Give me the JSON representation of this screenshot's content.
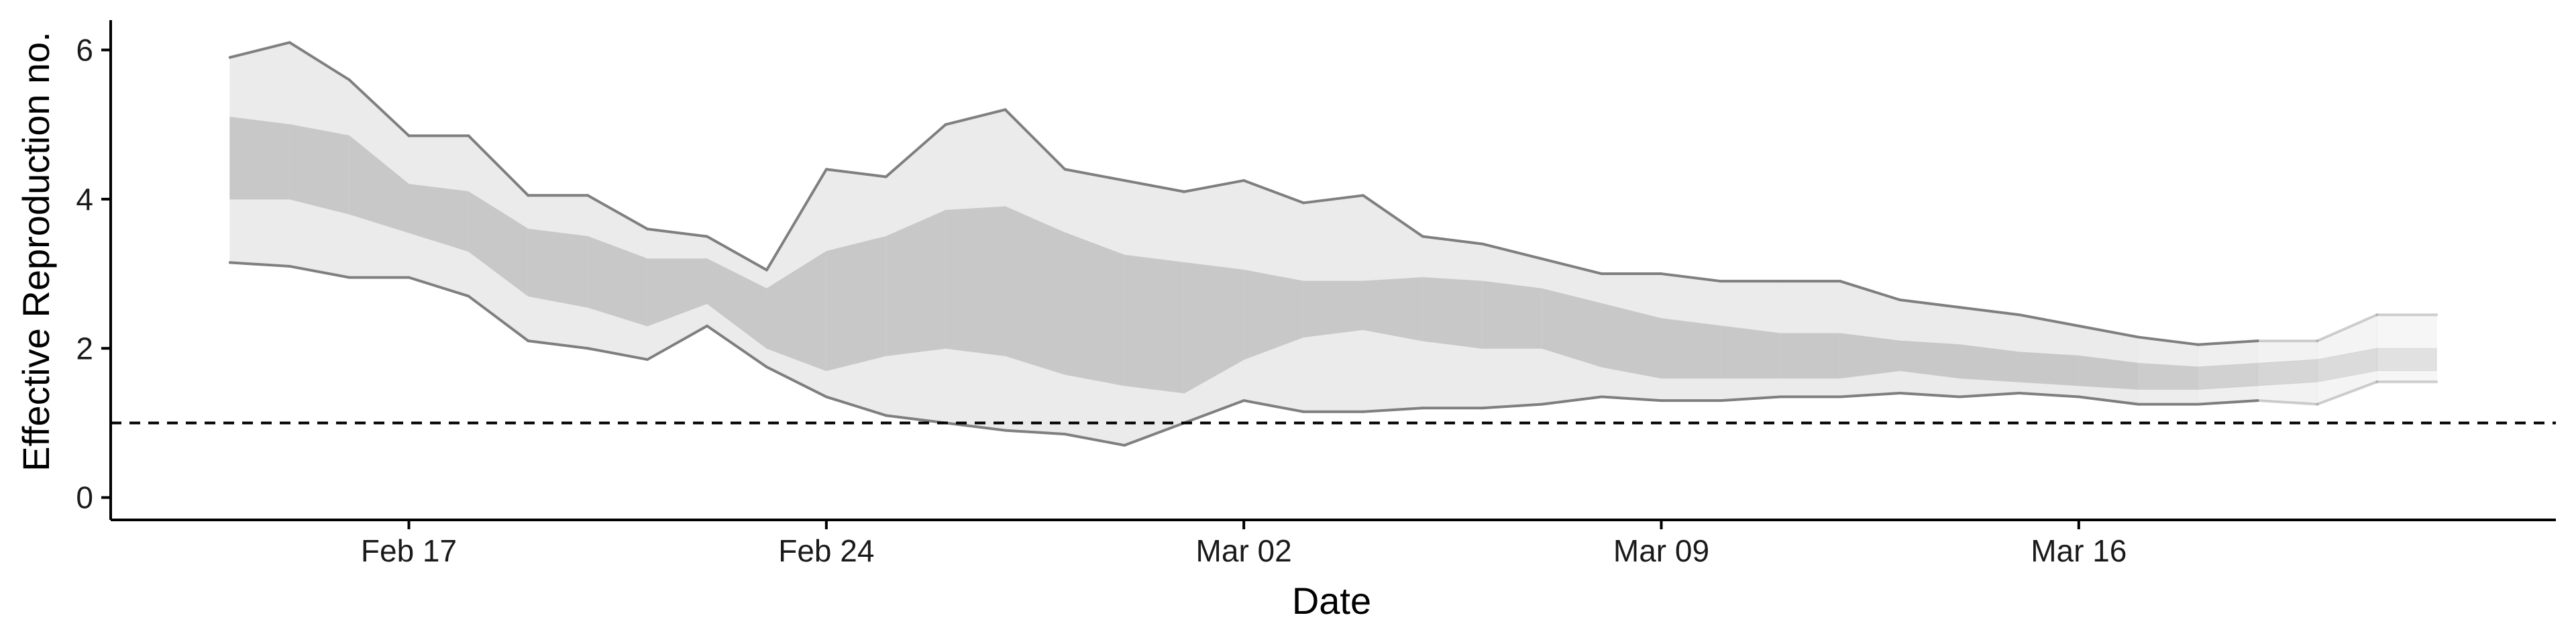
{
  "chart_data": {
    "type": "area",
    "xlabel": "Date",
    "ylabel": "Effective Reproduction no.",
    "x_ticks": [
      "Feb 17",
      "Feb 24",
      "Mar 02",
      "Mar 09",
      "Mar 16"
    ],
    "y_ticks": [
      0,
      2,
      4,
      6
    ],
    "ylim": [
      -0.3,
      6.4
    ],
    "xlim": [
      "2020-02-12",
      "2020-03-24"
    ],
    "reference_line": {
      "y": 1,
      "style": "dashed"
    },
    "grid": false,
    "dates": [
      "2020-02-14",
      "2020-02-15",
      "2020-02-16",
      "2020-02-17",
      "2020-02-18",
      "2020-02-19",
      "2020-02-20",
      "2020-02-21",
      "2020-02-22",
      "2020-02-23",
      "2020-02-24",
      "2020-02-25",
      "2020-02-26",
      "2020-02-27",
      "2020-02-28",
      "2020-02-29",
      "2020-03-01",
      "2020-03-02",
      "2020-03-03",
      "2020-03-04",
      "2020-03-05",
      "2020-03-06",
      "2020-03-07",
      "2020-03-08",
      "2020-03-09",
      "2020-03-10",
      "2020-03-11",
      "2020-03-12",
      "2020-03-13",
      "2020-03-14",
      "2020-03-15",
      "2020-03-16",
      "2020-03-17",
      "2020-03-18",
      "2020-03-19",
      "2020-03-20",
      "2020-03-21",
      "2020-03-22"
    ],
    "series": [
      {
        "role": "outer_upper",
        "values": [
          5.9,
          6.1,
          5.6,
          4.85,
          4.85,
          4.05,
          4.05,
          3.6,
          3.5,
          3.05,
          4.4,
          4.3,
          5.0,
          5.2,
          4.4,
          4.25,
          4.1,
          4.25,
          3.95,
          4.05,
          3.5,
          3.4,
          3.2,
          3.0,
          3.0,
          2.9,
          2.9,
          2.9,
          2.65,
          2.55,
          2.45,
          2.3,
          2.15,
          2.05,
          2.1,
          2.1,
          2.45,
          2.45
        ]
      },
      {
        "role": "inner_upper",
        "values": [
          5.1,
          5.0,
          4.85,
          4.2,
          4.1,
          3.6,
          3.5,
          3.2,
          3.2,
          2.8,
          3.3,
          3.5,
          3.85,
          3.9,
          3.55,
          3.25,
          3.15,
          3.05,
          2.9,
          2.9,
          2.95,
          2.9,
          2.8,
          2.6,
          2.4,
          2.3,
          2.2,
          2.2,
          2.1,
          2.05,
          1.95,
          1.9,
          1.8,
          1.75,
          1.8,
          1.85,
          2.0,
          2.0
        ]
      },
      {
        "role": "inner_lower",
        "values": [
          4.0,
          4.0,
          3.8,
          3.55,
          3.3,
          2.7,
          2.55,
          2.3,
          2.6,
          2.0,
          1.7,
          1.9,
          2.0,
          1.9,
          1.65,
          1.5,
          1.4,
          1.85,
          2.15,
          2.25,
          2.1,
          2.0,
          2.0,
          1.75,
          1.6,
          1.6,
          1.6,
          1.6,
          1.7,
          1.6,
          1.55,
          1.5,
          1.45,
          1.45,
          1.5,
          1.55,
          1.7,
          1.7
        ]
      },
      {
        "role": "outer_lower",
        "values": [
          3.15,
          3.1,
          2.95,
          2.95,
          2.7,
          2.1,
          2.0,
          1.85,
          2.3,
          1.75,
          1.35,
          1.1,
          1.0,
          0.9,
          0.85,
          0.7,
          1.0,
          1.3,
          1.15,
          1.15,
          1.2,
          1.2,
          1.25,
          1.35,
          1.3,
          1.3,
          1.35,
          1.35,
          1.4,
          1.35,
          1.4,
          1.35,
          1.25,
          1.25,
          1.3,
          1.25,
          1.55,
          1.55
        ]
      }
    ],
    "colors": {
      "outer_band": "#ebebeb",
      "inner_band": "#c8c8c8",
      "outer_edge": "#7f7f7f",
      "axis": "#000000"
    }
  }
}
